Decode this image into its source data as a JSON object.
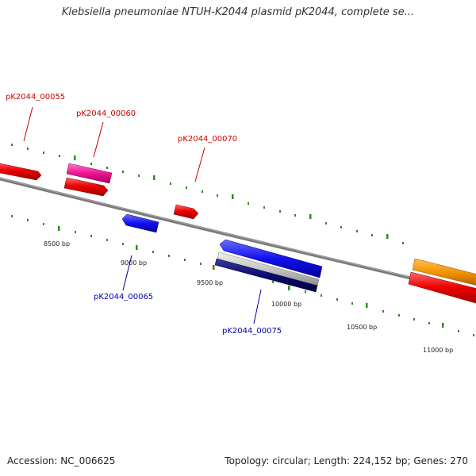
{
  "title": "Klebsiella pneumoniae NTUH-K2044 plasmid pK2044, complete se...",
  "footer": {
    "accession": "Accession: NC_006625",
    "summary": "Topology: circular; Length: 224,152 bp; Genes: 270"
  },
  "colors": {
    "forward_label": "#cc0000",
    "reverse_label": "#0000aa",
    "backbone": "#7a7a7a",
    "tick": "#2e8b1e"
  },
  "scale": {
    "tick_labels": [
      "8500 bp",
      "9000 bp",
      "9500 bp",
      "10000 bp",
      "10500 bp",
      "11000 bp"
    ]
  },
  "gene_labels": [
    {
      "text": "pK2044_00055",
      "strand": "forward"
    },
    {
      "text": "pK2044_00060",
      "strand": "forward"
    },
    {
      "text": "pK2044_00070",
      "strand": "forward"
    },
    {
      "text": "pK2044_00065",
      "strand": "reverse"
    },
    {
      "text": "pK2044_00075",
      "strand": "reverse"
    }
  ]
}
